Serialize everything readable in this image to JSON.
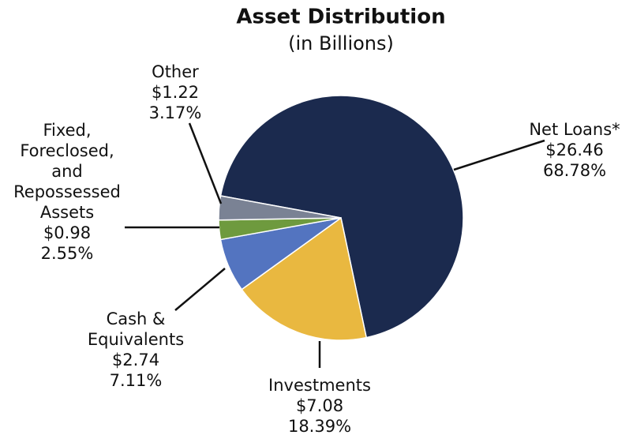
{
  "chart_data": {
    "type": "pie",
    "title": "Asset Distribution",
    "subtitle": "(in Billions)",
    "categories": [
      [
        "Net Loans*"
      ],
      [
        "Investments"
      ],
      [
        "Cash &",
        "Equivalents"
      ],
      [
        "Fixed,",
        "Foreclosed,",
        "and",
        "Repossessed",
        "Assets"
      ],
      [
        "Other"
      ]
    ],
    "values": [
      68.78,
      18.39,
      7.11,
      2.55,
      3.17
    ],
    "value_labels": [
      "68.78%",
      "18.39%",
      "7.11%",
      "2.55%",
      "3.17%"
    ],
    "amounts": [
      26.46,
      7.08,
      2.74,
      0.98,
      1.22
    ],
    "amount_labels": [
      "$26.46",
      "$7.08",
      "$2.74",
      "$0.98",
      "$1.22"
    ],
    "colors": [
      "#1b2a4e",
      "#e9b840",
      "#5374c0",
      "#6e9a3e",
      "#7a8294"
    ]
  }
}
